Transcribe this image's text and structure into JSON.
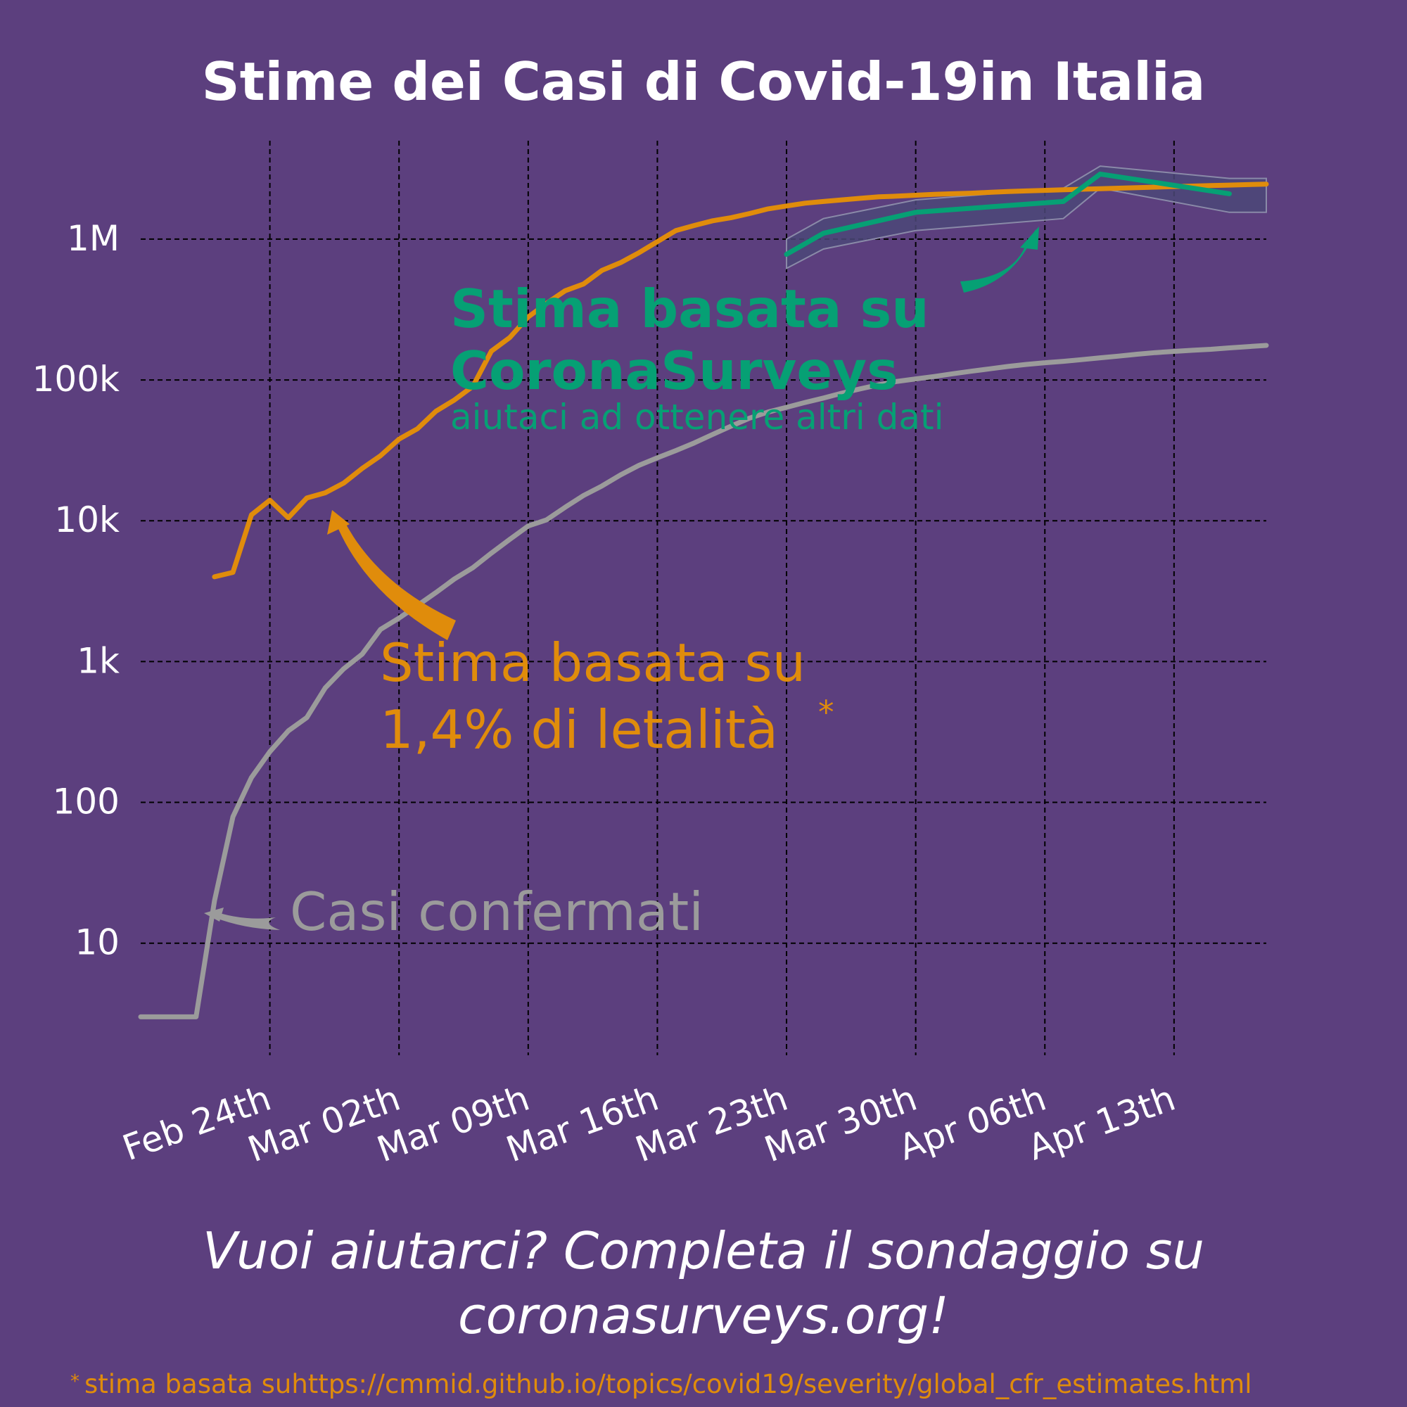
{
  "colors": {
    "background": "#5c3f7e",
    "estimate_cfr": "#e08c0b",
    "estimate_surveys": "#06a074",
    "confirmed": "#9b9b9b",
    "band_fill": "#4b4878",
    "grid": "#000000",
    "text": "#ffffff"
  },
  "footer": {
    "cta_line1": "Vuoi aiutarci? Completa il sondaggio su",
    "cta_line2": "coronasurveys.org!",
    "footnote_mark": "*",
    "footnote_text": "stima basata suhttps://cmmid.github.io/topics/covid19/severity/global_cfr_estimates.html"
  },
  "chart_data": {
    "type": "line",
    "title": "Stime dei Casi di Covid-19in Italia",
    "xlabel": "",
    "ylabel": "",
    "y_scale": "log",
    "grid": true,
    "xlim": [
      "2020-02-17",
      "2020-04-18"
    ],
    "ylim": [
      1.6,
      5000000
    ],
    "x_ticks": [
      {
        "date": "2020-02-24",
        "label": "Feb 24th"
      },
      {
        "date": "2020-03-02",
        "label": "Mar 02th"
      },
      {
        "date": "2020-03-09",
        "label": "Mar 09th"
      },
      {
        "date": "2020-03-16",
        "label": "Mar 16th"
      },
      {
        "date": "2020-03-23",
        "label": "Mar 23th"
      },
      {
        "date": "2020-03-30",
        "label": "Mar 30th"
      },
      {
        "date": "2020-04-06",
        "label": "Apr 06th"
      },
      {
        "date": "2020-04-13",
        "label": "Apr 13th"
      }
    ],
    "y_ticks": [
      {
        "value": 10,
        "label": "10"
      },
      {
        "value": 100,
        "label": "100"
      },
      {
        "value": 1000,
        "label": "1k"
      },
      {
        "value": 10000,
        "label": "10k"
      },
      {
        "value": 100000,
        "label": "100k"
      },
      {
        "value": 1000000,
        "label": "1M"
      }
    ],
    "annotations": {
      "surveys_line1": "Stima basata su",
      "surveys_line2": "CoronaSurveys",
      "surveys_sub": "aiutaci ad ottenere altri dati",
      "cfr_line1": "Stima basata su",
      "cfr_line2": "1,4% di letalità",
      "cfr_mark": "*",
      "confirmed": "Casi confermati"
    },
    "series": [
      {
        "key": "confirmed",
        "x": [
          "2020-02-17",
          "2020-02-18",
          "2020-02-19",
          "2020-02-20",
          "2020-02-21",
          "2020-02-22",
          "2020-02-23",
          "2020-02-24",
          "2020-02-25",
          "2020-02-26",
          "2020-02-27",
          "2020-02-28",
          "2020-02-29",
          "2020-03-01",
          "2020-03-02",
          "2020-03-03",
          "2020-03-04",
          "2020-03-05",
          "2020-03-06",
          "2020-03-07",
          "2020-03-08",
          "2020-03-09",
          "2020-03-10",
          "2020-03-11",
          "2020-03-12",
          "2020-03-13",
          "2020-03-14",
          "2020-03-15",
          "2020-03-16",
          "2020-03-17",
          "2020-03-18",
          "2020-03-19",
          "2020-03-20",
          "2020-03-21",
          "2020-03-22",
          "2020-03-23",
          "2020-03-24",
          "2020-03-25",
          "2020-03-26",
          "2020-03-27",
          "2020-03-28",
          "2020-03-29",
          "2020-03-30",
          "2020-03-31",
          "2020-04-01",
          "2020-04-02",
          "2020-04-03",
          "2020-04-04",
          "2020-04-05",
          "2020-04-06",
          "2020-04-07",
          "2020-04-08",
          "2020-04-09",
          "2020-04-10",
          "2020-04-11",
          "2020-04-12",
          "2020-04-13",
          "2020-04-14",
          "2020-04-15",
          "2020-04-16",
          "2020-04-17",
          "2020-04-18"
        ],
        "y": [
          3,
          3,
          3,
          3,
          20,
          79,
          150,
          229,
          322,
          400,
          650,
          888,
          1128,
          1694,
          2036,
          2502,
          3089,
          3858,
          4636,
          5883,
          7375,
          9172,
          10149,
          12462,
          15113,
          17660,
          21157,
          24747,
          27980,
          31506,
          35713,
          41035,
          47021,
          53578,
          59138,
          63927,
          69176,
          74386,
          80539,
          86498,
          92472,
          97689,
          101739,
          105792,
          110574,
          115242,
          119827,
          124632,
          128948,
          132547,
          135586,
          139422,
          143626,
          147577,
          152271,
          156363,
          159516,
          162488,
          165155,
          168941,
          172434,
          175925
        ]
      },
      {
        "key": "estimate_cfr",
        "x": [
          "2020-02-21",
          "2020-02-22",
          "2020-02-23",
          "2020-02-24",
          "2020-02-25",
          "2020-02-26",
          "2020-02-27",
          "2020-02-28",
          "2020-02-29",
          "2020-03-01",
          "2020-03-02",
          "2020-03-03",
          "2020-03-04",
          "2020-03-05",
          "2020-03-06",
          "2020-03-07",
          "2020-03-08",
          "2020-03-09",
          "2020-03-10",
          "2020-03-11",
          "2020-03-12",
          "2020-03-13",
          "2020-03-14",
          "2020-03-15",
          "2020-03-16",
          "2020-03-17",
          "2020-03-18",
          "2020-03-19",
          "2020-03-20",
          "2020-03-21",
          "2020-03-22",
          "2020-03-23",
          "2020-03-24",
          "2020-03-25",
          "2020-03-26",
          "2020-03-27",
          "2020-03-28",
          "2020-03-29",
          "2020-03-30",
          "2020-03-31",
          "2020-04-01",
          "2020-04-02",
          "2020-04-03",
          "2020-04-04",
          "2020-04-05",
          "2020-04-06",
          "2020-04-07",
          "2020-04-08",
          "2020-04-09",
          "2020-04-10",
          "2020-04-11",
          "2020-04-12",
          "2020-04-13",
          "2020-04-14",
          "2020-04-15",
          "2020-04-16",
          "2020-04-17",
          "2020-04-18"
        ],
        "y": [
          4000,
          4300,
          11000,
          14000,
          10500,
          14500,
          15800,
          18500,
          23500,
          29000,
          38000,
          45000,
          60000,
          72000,
          90000,
          160000,
          200000,
          280000,
          350000,
          430000,
          480000,
          600000,
          680000,
          800000,
          960000,
          1150000,
          1250000,
          1350000,
          1420000,
          1520000,
          1640000,
          1720000,
          1800000,
          1850000,
          1900000,
          1950000,
          2000000,
          2020000,
          2050000,
          2080000,
          2100000,
          2120000,
          2150000,
          2180000,
          2200000,
          2220000,
          2240000,
          2260000,
          2280000,
          2300000,
          2320000,
          2340000,
          2360000,
          2380000,
          2400000,
          2420000,
          2440000,
          2460000
        ]
      },
      {
        "key": "estimate_surveys",
        "x": [
          "2020-03-23",
          "2020-03-25",
          "2020-03-30",
          "2020-04-07",
          "2020-04-09",
          "2020-04-16"
        ],
        "y": [
          780000,
          1100000,
          1550000,
          1850000,
          2900000,
          2100000
        ],
        "y_low": [
          620000,
          850000,
          1150000,
          1400000,
          2300000,
          1550000
        ],
        "y_high": [
          1000000,
          1400000,
          1900000,
          2300000,
          3300000,
          2700000
        ],
        "band_until": "2020-04-18"
      }
    ]
  }
}
